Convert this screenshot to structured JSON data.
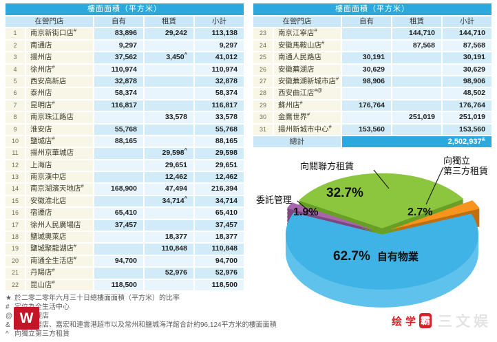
{
  "columns": {
    "store": "在營門店",
    "own": "自有",
    "rent": "租賃",
    "subtotal": "小計"
  },
  "left_table": {
    "title": "樓面面積（平方米）",
    "rows": [
      {
        "n": "1",
        "name": "南京新街口店",
        "sup": "#",
        "own": "83,896",
        "rent": "29,242",
        "rsup": "",
        "total": "113,138"
      },
      {
        "n": "2",
        "name": "南通店",
        "sup": "",
        "own": "9,297",
        "rent": "",
        "rsup": "",
        "total": "9,297"
      },
      {
        "n": "3",
        "name": "揚州店",
        "sup": "",
        "own": "37,562",
        "rent": "3,450",
        "rsup": "^",
        "total": "41,012"
      },
      {
        "n": "4",
        "name": "徐州店",
        "sup": "#",
        "own": "110,974",
        "rent": "",
        "rsup": "",
        "total": "110,974"
      },
      {
        "n": "5",
        "name": "西安高新店",
        "sup": "",
        "own": "32,878",
        "rent": "",
        "rsup": "",
        "total": "32,878"
      },
      {
        "n": "6",
        "name": "泰州店",
        "sup": "",
        "own": "58,374",
        "rent": "",
        "rsup": "",
        "total": "58,374"
      },
      {
        "n": "7",
        "name": "昆明店",
        "sup": "#",
        "own": "116,817",
        "rent": "",
        "rsup": "",
        "total": "116,817"
      },
      {
        "n": "8",
        "name": "南京珠江路店",
        "sup": "",
        "own": "",
        "rent": "33,578",
        "rsup": "",
        "total": "33,578"
      },
      {
        "n": "9",
        "name": "淮安店",
        "sup": "",
        "own": "55,768",
        "rent": "",
        "rsup": "",
        "total": "55,768"
      },
      {
        "n": "10",
        "name": "鹽城店",
        "sup": "#",
        "own": "88,165",
        "rent": "",
        "rsup": "",
        "total": "88,165"
      },
      {
        "n": "11",
        "name": "揚州京華城店",
        "sup": "",
        "own": "",
        "rent": "29,598",
        "rsup": "^",
        "total": "29,598"
      },
      {
        "n": "12",
        "name": "上海店",
        "sup": "",
        "own": "",
        "rent": "29,651",
        "rsup": "",
        "total": "29,651"
      },
      {
        "n": "13",
        "name": "南京漢中店",
        "sup": "",
        "own": "",
        "rent": "12,462",
        "rsup": "",
        "total": "12,462"
      },
      {
        "n": "14",
        "name": "南京湖濱天地店",
        "sup": "#",
        "own": "168,900",
        "rent": "47,494",
        "rsup": "",
        "total": "216,394"
      },
      {
        "n": "15",
        "name": "安徽淮北店",
        "sup": "",
        "own": "",
        "rent": "34,714",
        "rsup": "^",
        "total": "34,714"
      },
      {
        "n": "16",
        "name": "宿遷店",
        "sup": "",
        "own": "65,410",
        "rent": "",
        "rsup": "",
        "total": "65,410"
      },
      {
        "n": "17",
        "name": "徐州人民廣場店",
        "sup": "",
        "own": "37,457",
        "rent": "",
        "rsup": "",
        "total": "37,457"
      },
      {
        "n": "18",
        "name": "鹽城奧萊店",
        "sup": "",
        "own": "",
        "rent": "18,377",
        "rsup": "",
        "total": "18,377"
      },
      {
        "n": "19",
        "name": "鹽城聚龍湖店",
        "sup": "#",
        "own": "",
        "rent": "110,848",
        "rsup": "",
        "total": "110,848"
      },
      {
        "n": "20",
        "name": "南通全生活店",
        "sup": "#",
        "own": "94,700",
        "rent": "",
        "rsup": "",
        "total": "94,700"
      },
      {
        "n": "21",
        "name": "丹陽店",
        "sup": "#",
        "own": "",
        "rent": "52,976",
        "rsup": "",
        "total": "52,976"
      },
      {
        "n": "22",
        "name": "昆山店",
        "sup": "#",
        "own": "118,500",
        "rent": "",
        "rsup": "",
        "total": "118,500"
      }
    ]
  },
  "right_table": {
    "title": "樓面面積（平方米）",
    "rows": [
      {
        "n": "23",
        "name": "南京江寧店",
        "sup": "#",
        "own": "",
        "rent": "144,710",
        "rsup": "",
        "total": "144,710"
      },
      {
        "n": "24",
        "name": "安徽馬鞍山店",
        "sup": "#",
        "own": "",
        "rent": "87,568",
        "rsup": "",
        "total": "87,568"
      },
      {
        "n": "25",
        "name": "南通人民路店",
        "sup": "",
        "own": "30,191",
        "rent": "",
        "rsup": "",
        "total": "30,191"
      },
      {
        "n": "26",
        "name": "安徽蕪湖店",
        "sup": "",
        "own": "30,629",
        "rent": "",
        "rsup": "",
        "total": "30,629"
      },
      {
        "n": "27",
        "name": "安徽蕪湖新城市店",
        "sup": "#",
        "own": "98,906",
        "rent": "",
        "rsup": "",
        "total": "98,906"
      },
      {
        "n": "28",
        "name": "西安曲江店",
        "sup": "#@",
        "own": "",
        "rent": "",
        "rsup": "",
        "total": "48,502"
      },
      {
        "n": "29",
        "name": "蘇州店",
        "sup": "#",
        "own": "176,764",
        "rent": "",
        "rsup": "",
        "total": "176,764"
      },
      {
        "n": "30",
        "name": "金鷹世界",
        "sup": "#",
        "own": "",
        "rent": "251,019",
        "rsup": "",
        "total": "251,019"
      },
      {
        "n": "31",
        "name": "揚州新城市中心",
        "sup": "#",
        "own": "153,560",
        "rent": "",
        "rsup": "",
        "total": "153,560"
      }
    ],
    "total": {
      "label": "總計",
      "value": "2,502,937",
      "sup": "&"
    }
  },
  "chart_data": {
    "type": "pie",
    "unit": "%",
    "slices": [
      {
        "id": "own",
        "label": "自有物業",
        "value": 62.7,
        "pct_label": "62.7%",
        "color": "#3FB3E5",
        "side_color": "#5FC2EC"
      },
      {
        "id": "related",
        "label": "向關聯方租賃",
        "value": 32.7,
        "pct_label": "32.7%",
        "color": "#8CC63F",
        "side_color": "#699F27"
      },
      {
        "id": "third",
        "label": "向獨立第三方租賃",
        "value": 2.7,
        "pct_label": "2.7%",
        "color": "#F7941E",
        "side_color": "#C06F10"
      },
      {
        "id": "managed",
        "label": "委託管理",
        "value": 1.9,
        "pct_label": "1.9%",
        "color": "#A865AC",
        "side_color": "#7C487F"
      }
    ],
    "third_line1": "向獨立",
    "third_line2": "第三方租賃",
    "legend_position": "callout-labels",
    "style": "3d-exploded"
  },
  "footnotes": [
    {
      "sym": "★",
      "text": "於二零二零年六月三十日總樓面面積（平方米）的比率"
    },
    {
      "sym": "#",
      "text": "定位為全生活中心"
    },
    {
      "sym": "@",
      "text": "委託管理店"
    },
    {
      "sym": "&",
      "text": "包括溧陽店、嘉宏和連雲港超市以及常州和鹽城海洋館合計約96,124平方米的樓面面積"
    },
    {
      "sym": "^",
      "text": "向獨立第三方租賃"
    }
  ],
  "watermark": {
    "logo_letter": "W",
    "brand_char1": "绘",
    "brand_char2": "学",
    "brand_badge": "霸",
    "brand_gray": "三文娱"
  }
}
